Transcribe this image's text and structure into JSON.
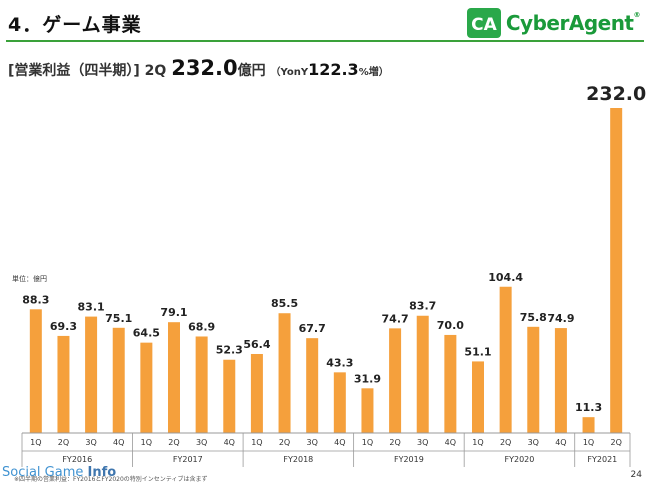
{
  "header": {
    "title": "4．ゲーム事業",
    "logo_text": "CyberAgent",
    "logo_mark": "CA"
  },
  "subtitle": {
    "label": "[営業利益（四半期）]",
    "quarter": "2Q",
    "value": "232.0",
    "unit": "億円",
    "yoy_prefix": "（YonY",
    "yoy_value": "122.3",
    "yoy_suffix": "%増）"
  },
  "footnote": "※四半期の営業利益：FY2016とFY2020の特別インセンティブは含まず",
  "watermark": {
    "part1": "Social Game ",
    "part2": "Info"
  },
  "page_number": "24",
  "colors": {
    "bar": "#f5a03c",
    "accent": "#3aa13a",
    "logo": "#1a9a3a"
  },
  "chart_data": {
    "type": "bar",
    "unit_label": "単位：億円",
    "ylim": [
      0,
      240
    ],
    "grid": false,
    "categories": [
      "1Q",
      "2Q",
      "3Q",
      "4Q",
      "1Q",
      "2Q",
      "3Q",
      "4Q",
      "1Q",
      "2Q",
      "3Q",
      "4Q",
      "1Q",
      "2Q",
      "3Q",
      "4Q",
      "1Q",
      "2Q",
      "3Q",
      "4Q",
      "1Q",
      "2Q"
    ],
    "values": [
      88.3,
      69.3,
      83.1,
      75.1,
      64.5,
      79.1,
      68.9,
      52.3,
      56.4,
      85.5,
      67.7,
      43.3,
      31.9,
      74.7,
      83.7,
      70.0,
      51.1,
      104.4,
      75.8,
      74.9,
      11.3,
      232.0
    ],
    "value_labels": [
      "88.3",
      "69.3",
      "83.1",
      "75.1",
      "64.5",
      "79.1",
      "68.9",
      "52.3",
      "56.4",
      "85.5",
      "67.7",
      "43.3",
      "31.9",
      "74.7",
      "83.7",
      "70.0",
      "51.1",
      "104.4",
      "75.8",
      "74.9",
      "11.3",
      "232.0"
    ],
    "groups": [
      {
        "label": "FY2016",
        "count": 4
      },
      {
        "label": "FY2017",
        "count": 4
      },
      {
        "label": "FY2018",
        "count": 4
      },
      {
        "label": "FY2019",
        "count": 4
      },
      {
        "label": "FY2020",
        "count": 4
      },
      {
        "label": "FY2021",
        "count": 2
      }
    ]
  }
}
